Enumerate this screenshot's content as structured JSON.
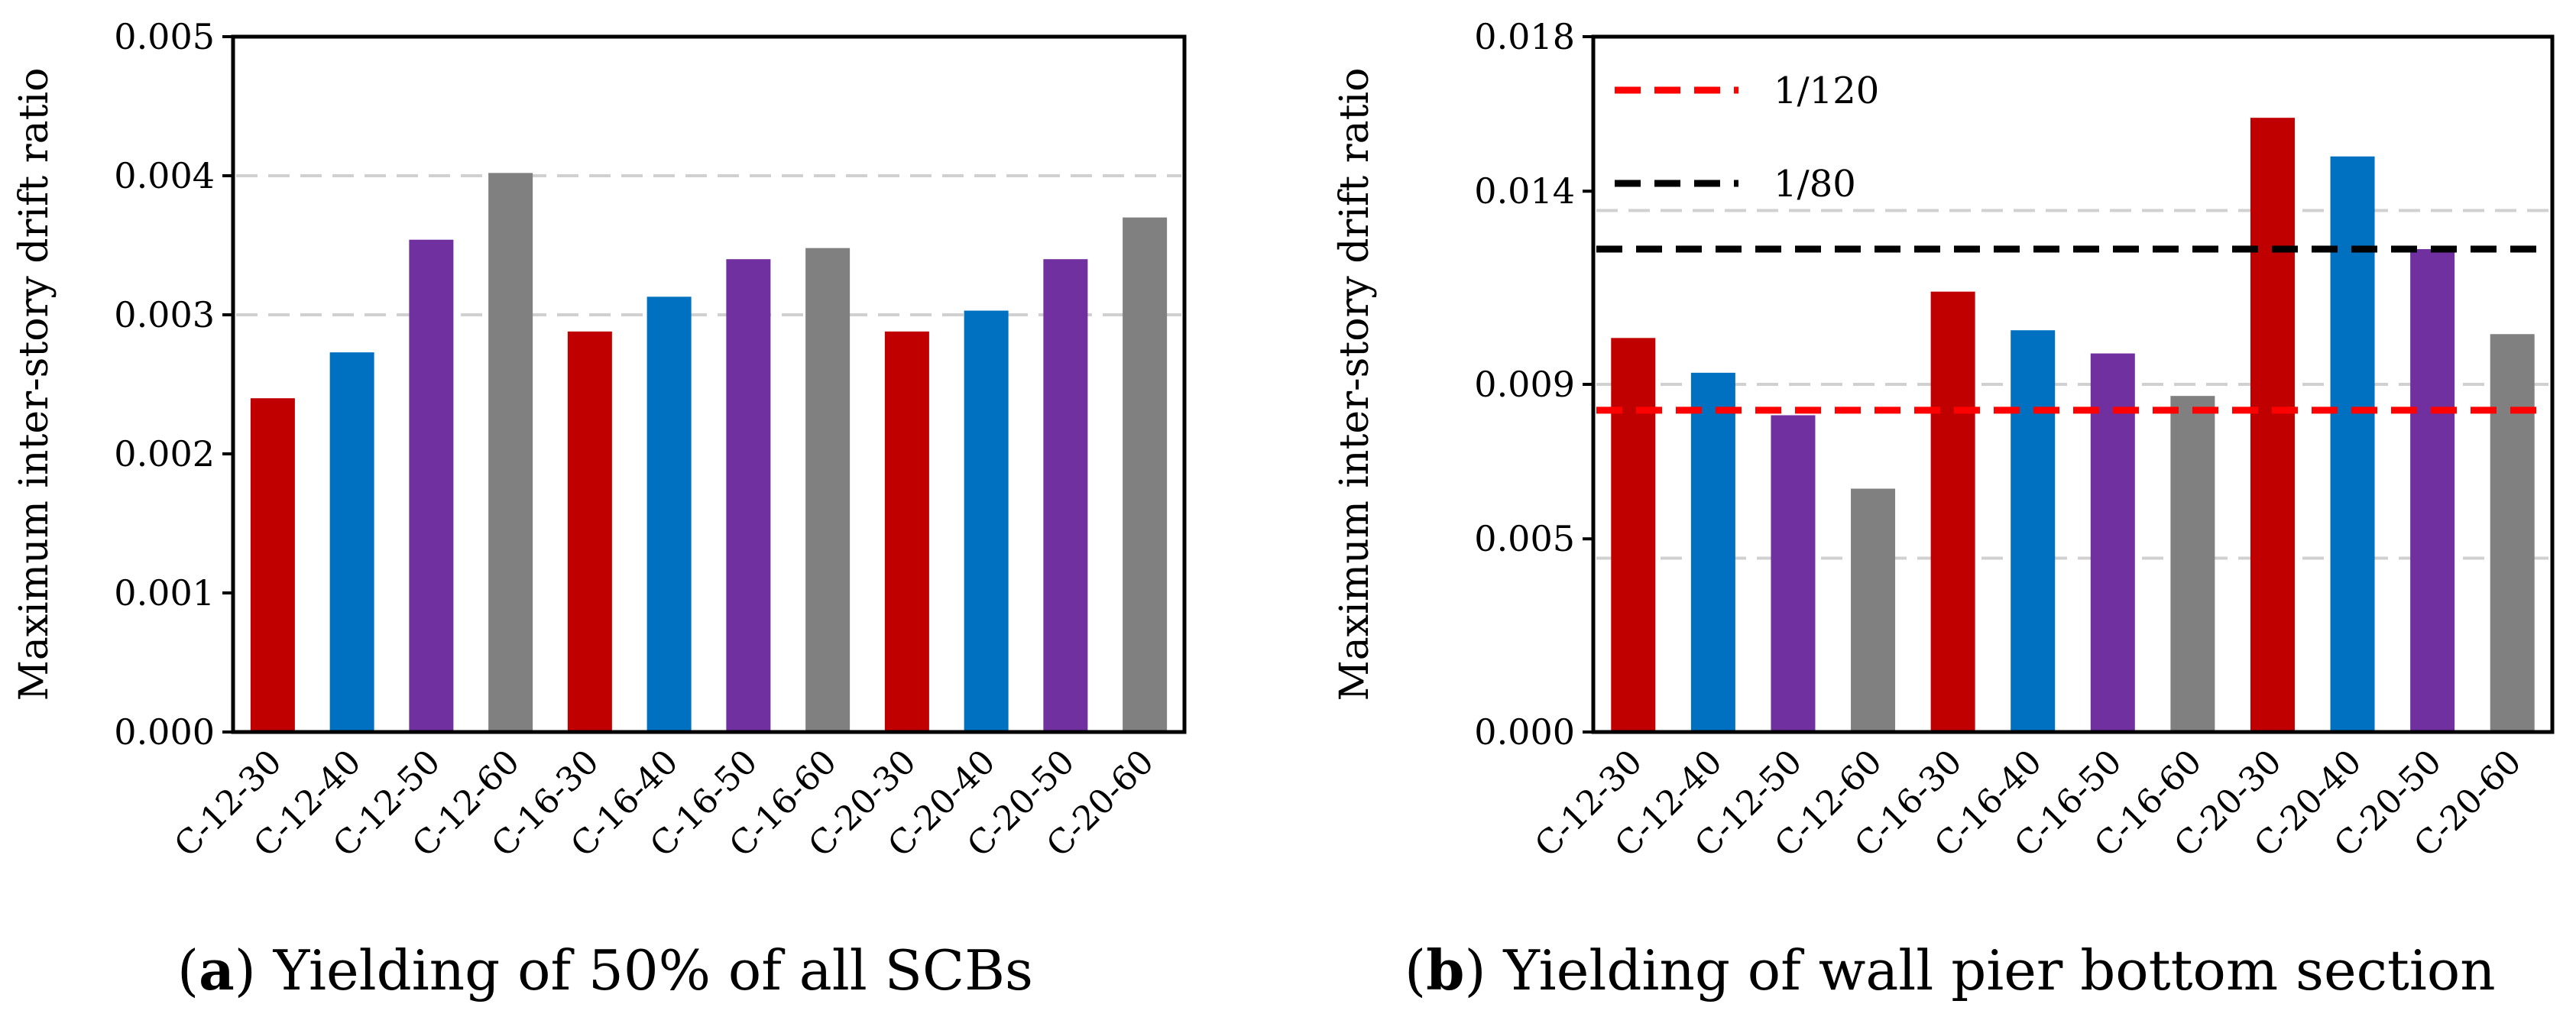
{
  "colors": {
    "red": "#c00000",
    "blue": "#0070c0",
    "purple": "#7030a0",
    "gray": "#808080",
    "grid": "#d0d0d0",
    "ref_red": "#ff0000",
    "ref_black": "#000000"
  },
  "chart_data": [
    {
      "id": "a",
      "type": "bar",
      "ylabel": "Maximum  inter-story drift ratio",
      "ylim": [
        0,
        0.005
      ],
      "ytick_values": [
        0,
        0.001,
        0.002,
        0.003,
        0.004,
        0.005
      ],
      "ytick_labels": [
        "0.000",
        "0.001",
        "0.002",
        "0.003",
        "0.004",
        "0.005"
      ],
      "grid_values": [
        0.003,
        0.004
      ],
      "categories": [
        "C-12-30",
        "C-12-40",
        "C-12-50",
        "C-12-60",
        "C-16-30",
        "C-16-40",
        "C-16-50",
        "C-16-60",
        "C-20-30",
        "C-20-40",
        "C-20-50",
        "C-20-60"
      ],
      "values": [
        0.0024,
        0.00273,
        0.00354,
        0.00402,
        0.00288,
        0.00313,
        0.0034,
        0.00348,
        0.00288,
        0.00303,
        0.0034,
        0.0037
      ],
      "bar_colors": [
        "red",
        "blue",
        "purple",
        "gray",
        "red",
        "blue",
        "purple",
        "gray",
        "red",
        "blue",
        "purple",
        "gray"
      ],
      "caption_prefix": "(",
      "caption_letter": "a",
      "caption_text": ") Yielding of 50% of all SCBs"
    },
    {
      "id": "b",
      "type": "bar",
      "ylabel": "Maximum  inter-story drift ratio",
      "ylim": [
        0,
        0.018
      ],
      "ytick_values": [
        0,
        0.005,
        0.009,
        0.014,
        0.018
      ],
      "ytick_labels": [
        "0.000",
        "0.005",
        "0.009",
        "0.014",
        "0.018"
      ],
      "grid_values": [
        0.0045,
        0.009,
        0.0135
      ],
      "categories": [
        "C-12-30",
        "C-12-40",
        "C-12-50",
        "C-12-60",
        "C-16-30",
        "C-16-40",
        "C-16-50",
        "C-16-60",
        "C-20-30",
        "C-20-40",
        "C-20-50",
        "C-20-60"
      ],
      "values": [
        0.0102,
        0.0093,
        0.0082,
        0.0063,
        0.0114,
        0.0104,
        0.0098,
        0.0087,
        0.0159,
        0.0149,
        0.0125,
        0.0103
      ],
      "bar_colors": [
        "red",
        "blue",
        "purple",
        "gray",
        "red",
        "blue",
        "purple",
        "gray",
        "red",
        "blue",
        "purple",
        "gray"
      ],
      "reference_lines": [
        {
          "label": "1/120",
          "value": 0.00833,
          "color": "ref_red"
        },
        {
          "label": "1/80",
          "value": 0.0125,
          "color": "ref_black"
        }
      ],
      "legend_position": "top-left",
      "caption_prefix": "(",
      "caption_letter": "b",
      "caption_text": ") Yielding of wall pier bottom section"
    }
  ]
}
